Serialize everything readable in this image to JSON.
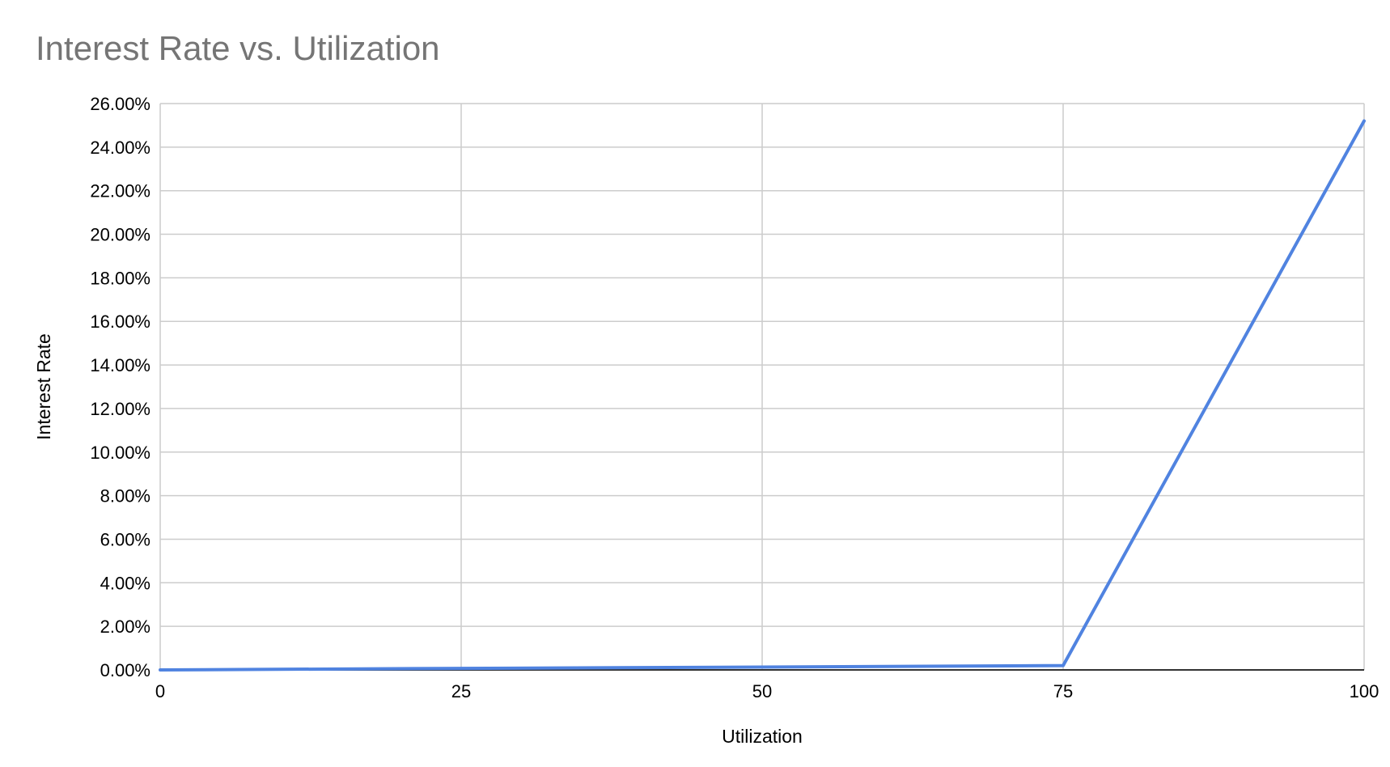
{
  "chart_data": {
    "type": "line",
    "title": "Interest Rate vs. Utilization",
    "xlabel": "Utilization",
    "ylabel": "Interest Rate",
    "xlim": [
      0,
      100
    ],
    "ylim": [
      0,
      26
    ],
    "x_ticks": [
      0,
      25,
      50,
      75,
      100
    ],
    "x_tick_labels": [
      "0",
      "25",
      "50",
      "75",
      "100"
    ],
    "y_ticks": [
      0,
      2,
      4,
      6,
      8,
      10,
      12,
      14,
      16,
      18,
      20,
      22,
      24,
      26
    ],
    "y_tick_labels": [
      "0.00%",
      "2.00%",
      "4.00%",
      "6.00%",
      "8.00%",
      "10.00%",
      "12.00%",
      "14.00%",
      "16.00%",
      "18.00%",
      "20.00%",
      "22.00%",
      "24.00%",
      "26.00%"
    ],
    "grid": true,
    "legend": "none",
    "series": [
      {
        "color": "#5083e0",
        "x": [
          0,
          25,
          50,
          75,
          100
        ],
        "y": [
          0,
          0.07,
          0.13,
          0.2,
          25.2
        ]
      }
    ]
  }
}
